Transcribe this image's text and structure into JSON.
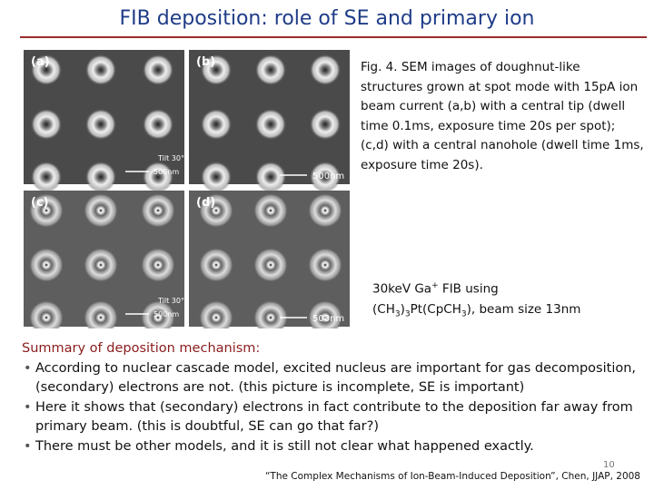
{
  "header": {
    "title": "FIB deposition: role of SE and primary ion"
  },
  "figure": {
    "panels": [
      {
        "label": "(a)",
        "tilt": "Tilt 30°",
        "scale": "500nm"
      },
      {
        "label": "(b)",
        "scale": "500nm"
      },
      {
        "label": "(c)",
        "tilt": "Tilt 30°",
        "scale": "500nm"
      },
      {
        "label": "(d)",
        "scale": "500nm"
      }
    ],
    "caption": "Fig. 4. SEM images of doughnut-like structures grown at spot mode with 15pA ion beam current (a,b) with a central tip (dwell time 0.1ms, exposure time 20s per spot); (c,d) with a central nanohole (dwell time 1ms, exposure time 20s)."
  },
  "note": {
    "line1": [
      "30keV Ga",
      "+",
      " FIB using"
    ],
    "line2": [
      "(CH",
      "3",
      ")",
      "3",
      "Pt(CpCH",
      "3",
      "), beam size 13nm"
    ]
  },
  "summary": {
    "heading": "Summary of deposition mechanism:",
    "bullets": [
      "According to nuclear cascade model, excited nucleus are important for gas decomposition, (secondary) electrons are not. (this picture is incomplete, SE is important)",
      "Here it shows that (secondary) electrons in fact contribute to the deposition far away from primary beam. (this is doubtful, SE can go that far?)",
      "There must be other models, and it is still not clear what happened exactly."
    ]
  },
  "footer": {
    "page": "10",
    "citation": "“The Complex Mechanisms of Ion-Beam-Induced Deposition”, Chen, JJAP, 2008"
  }
}
